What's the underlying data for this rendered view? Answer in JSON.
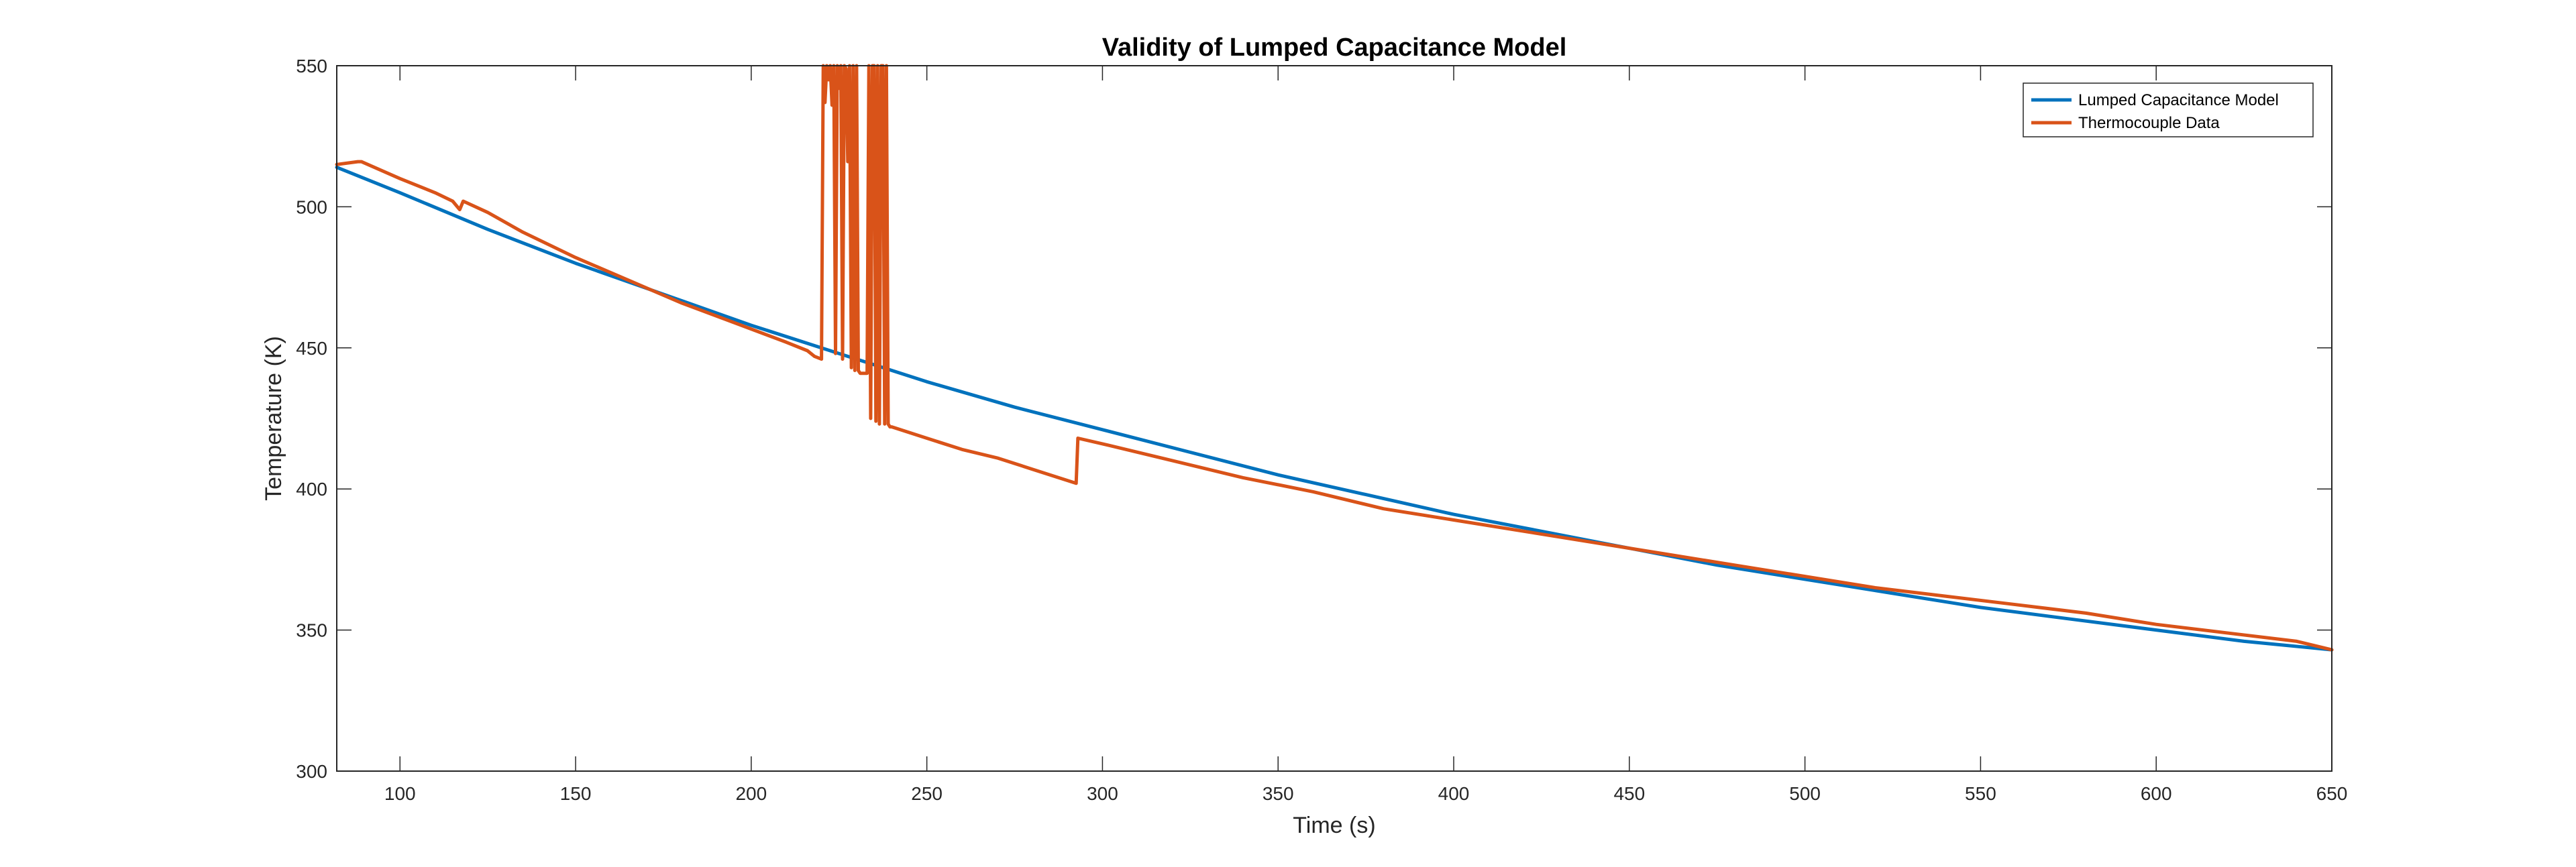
{
  "chart_data": {
    "type": "line",
    "title": "Validity of Lumped Capacitance Model",
    "xlabel": "Time (s)",
    "ylabel": "Temperature (K)",
    "xlim": [
      82,
      650
    ],
    "ylim": [
      300,
      550
    ],
    "xticks": [
      100,
      150,
      200,
      250,
      300,
      350,
      400,
      450,
      500,
      550,
      600,
      650
    ],
    "yticks": [
      300,
      350,
      400,
      450,
      500,
      550
    ],
    "grid": false,
    "legend_position": "top-right",
    "series": [
      {
        "name": "Lumped Capacitance Model",
        "color": "#0072BD",
        "x": [
          82,
          100,
          125,
          150,
          175,
          200,
          225,
          250,
          275,
          300,
          325,
          350,
          375,
          400,
          425,
          450,
          475,
          500,
          525,
          550,
          575,
          600,
          625,
          650
        ],
        "y": [
          514,
          505,
          492,
          480,
          469,
          458,
          448,
          438,
          429,
          421,
          413,
          405,
          398,
          391,
          385,
          379,
          373,
          368,
          363,
          358,
          354,
          350,
          346,
          343
        ]
      },
      {
        "name": "Thermocouple Data",
        "color": "#D95319",
        "x": [
          82,
          88,
          89,
          100,
          110,
          115,
          117,
          118,
          125,
          135,
          150,
          165,
          180,
          195,
          210,
          216,
          218,
          220,
          220.5,
          221,
          221.5,
          222,
          222.5,
          223,
          223.5,
          224,
          224.5,
          225,
          225.5,
          226,
          226.5,
          227,
          227.5,
          228,
          228.5,
          229,
          229.5,
          230,
          230.5,
          231,
          233,
          233.5,
          234,
          234.5,
          235,
          235.5,
          236,
          236.5,
          237,
          237.5,
          238,
          238.5,
          239,
          239.5,
          240,
          250,
          260,
          270,
          280,
          292.5,
          293,
          300,
          320,
          340,
          360,
          380,
          400,
          420,
          440,
          460,
          480,
          500,
          520,
          540,
          560,
          580,
          600,
          620,
          640,
          650
        ],
        "y": [
          515,
          516,
          516,
          510,
          505,
          502,
          499,
          502,
          498,
          491,
          482,
          474,
          466,
          459,
          452,
          449,
          447,
          446,
          550,
          537,
          550,
          545,
          550,
          536,
          550,
          448,
          550,
          542,
          550,
          446,
          550,
          549,
          516,
          550,
          443,
          550,
          442,
          550,
          442,
          441,
          441,
          550,
          425,
          550,
          550,
          424,
          550,
          423,
          550,
          550,
          423,
          550,
          423,
          422,
          422,
          418,
          414,
          411,
          407,
          402,
          418,
          416,
          410,
          404,
          399,
          393,
          389,
          385,
          381,
          377,
          373,
          369,
          365,
          362,
          359,
          356,
          352,
          349,
          346,
          343
        ]
      }
    ]
  }
}
